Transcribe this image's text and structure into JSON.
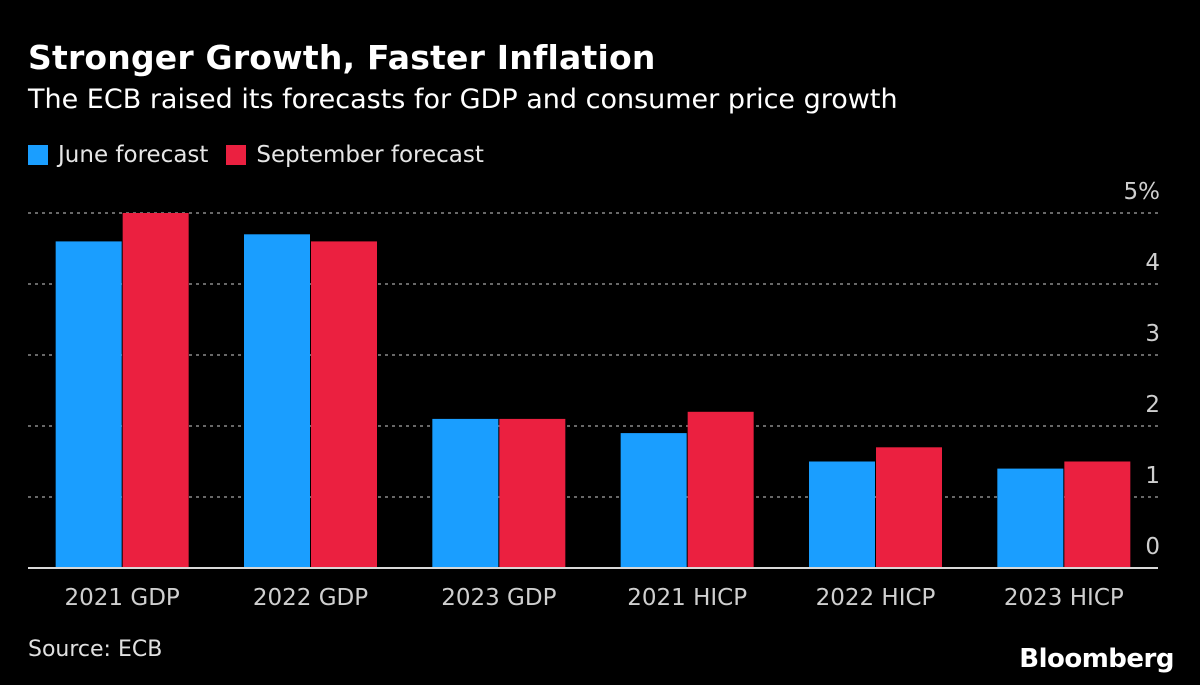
{
  "title": "Stronger Growth, Faster Inflation",
  "subtitle": "The ECB raised its forecasts for GDP and consumer price growth",
  "source": "Source: ECB",
  "brand": "Bloomberg",
  "colors": {
    "june": "#1a9eff",
    "september": "#eb2040",
    "grid": "#8a8a8a",
    "axis": "#cfcfcf"
  },
  "chart_data": {
    "type": "bar",
    "categories": [
      "2021 GDP",
      "2022 GDP",
      "2023 GDP",
      "2021 HICP",
      "2022 HICP",
      "2023 HICP"
    ],
    "series": [
      {
        "name": "June forecast",
        "values": [
          4.6,
          4.7,
          2.1,
          1.9,
          1.5,
          1.4
        ]
      },
      {
        "name": "September forecast",
        "values": [
          5.0,
          4.6,
          2.1,
          2.2,
          1.7,
          1.5
        ]
      }
    ],
    "yticks": [
      "5%",
      "4",
      "3",
      "2",
      "1",
      "0"
    ],
    "ytick_values": [
      5,
      4,
      3,
      2,
      1,
      0
    ],
    "ylim": [
      0,
      5
    ],
    "legend_position": "top-left"
  }
}
